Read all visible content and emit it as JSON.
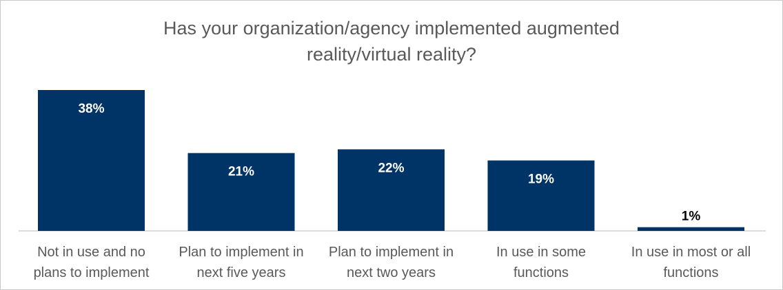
{
  "chart_data": {
    "type": "bar",
    "title_lines": [
      "Has your organization/agency implemented augmented",
      "reality/virtual reality?"
    ],
    "categories": [
      [
        "Not in use and no",
        "plans to implement"
      ],
      [
        "Plan to implement in",
        "next five years"
      ],
      [
        "Plan to implement in",
        "next two years"
      ],
      [
        "In use in some",
        "functions"
      ],
      [
        "In use in most or all",
        "functions"
      ]
    ],
    "values": [
      38,
      21,
      22,
      19,
      1
    ],
    "data_labels": [
      "38%",
      "21%",
      "22%",
      "19%",
      "1%"
    ],
    "xlabel": "",
    "ylabel": "",
    "ylim": [
      0,
      40
    ],
    "grid": false,
    "bar_color": "#003366"
  }
}
